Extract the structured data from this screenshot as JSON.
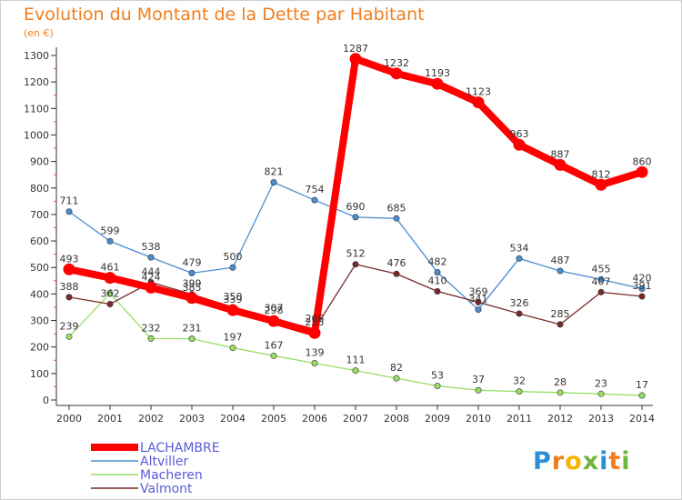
{
  "chart_data": {
    "type": "line",
    "title": "Evolution du Montant de la Dette par Habitant",
    "subtitle": "(en €)",
    "x": [
      "2000",
      "2001",
      "2002",
      "2003",
      "2004",
      "2005",
      "2006",
      "2007",
      "2008",
      "2009",
      "2010",
      "2011",
      "2012",
      "2013",
      "2014"
    ],
    "yticks": [
      0,
      100,
      200,
      300,
      400,
      500,
      600,
      700,
      800,
      900,
      1000,
      1100,
      1200,
      1300
    ],
    "ylim": [
      0,
      1300
    ],
    "grid": false,
    "legend_position": "bottom-left",
    "series": [
      {
        "name": "LACHAMBRE",
        "color": "#ff0000",
        "values": [
          493,
          461,
          424,
          385,
          339,
          298,
          253,
          1287,
          1232,
          1193,
          1123,
          963,
          887,
          812,
          860
        ]
      },
      {
        "name": "Altviller",
        "color": "#4a8ed0",
        "values": [
          711,
          599,
          538,
          479,
          500,
          821,
          754,
          690,
          685,
          482,
          341,
          534,
          487,
          455,
          420
        ]
      },
      {
        "name": "Macheren",
        "color": "#99dd66",
        "values": [
          239,
          402,
          232,
          231,
          197,
          167,
          139,
          111,
          82,
          53,
          37,
          32,
          28,
          23,
          17
        ]
      },
      {
        "name": "Valmont",
        "color": "#7a2a2a",
        "values": [
          388,
          362,
          444,
          399,
          350,
          307,
          268,
          512,
          476,
          410,
          369,
          326,
          285,
          407,
          391
        ]
      }
    ],
    "point_labels": [
      [
        "493",
        "461",
        "424",
        "385",
        "339",
        "298",
        "253",
        "1287",
        "1232",
        "1193",
        "1123",
        "963",
        "887",
        "812",
        "860"
      ],
      [
        "711",
        "599",
        "538",
        "479",
        "500",
        "821",
        "754",
        "690",
        "685",
        "482",
        "341",
        "534",
        "487",
        "455",
        "420"
      ],
      [
        "239",
        "",
        "232",
        "231",
        "197",
        "167",
        "139",
        "111",
        "82",
        "53",
        "37",
        "32",
        "28",
        "23",
        "17"
      ],
      [
        "388",
        "362",
        "444",
        "399",
        "350",
        "307",
        "268",
        "512",
        "476",
        "410",
        "369",
        "326",
        "285",
        "407",
        "391"
      ]
    ]
  },
  "logo": {
    "letters": [
      "P",
      "r",
      "o",
      "x",
      "i",
      "t",
      "i"
    ],
    "colors": [
      "#2a8fd6",
      "#f07e1e",
      "#f5b400",
      "#6fb73c",
      "#2a8fd6",
      "#f07e1e",
      "#6fb73c"
    ]
  }
}
